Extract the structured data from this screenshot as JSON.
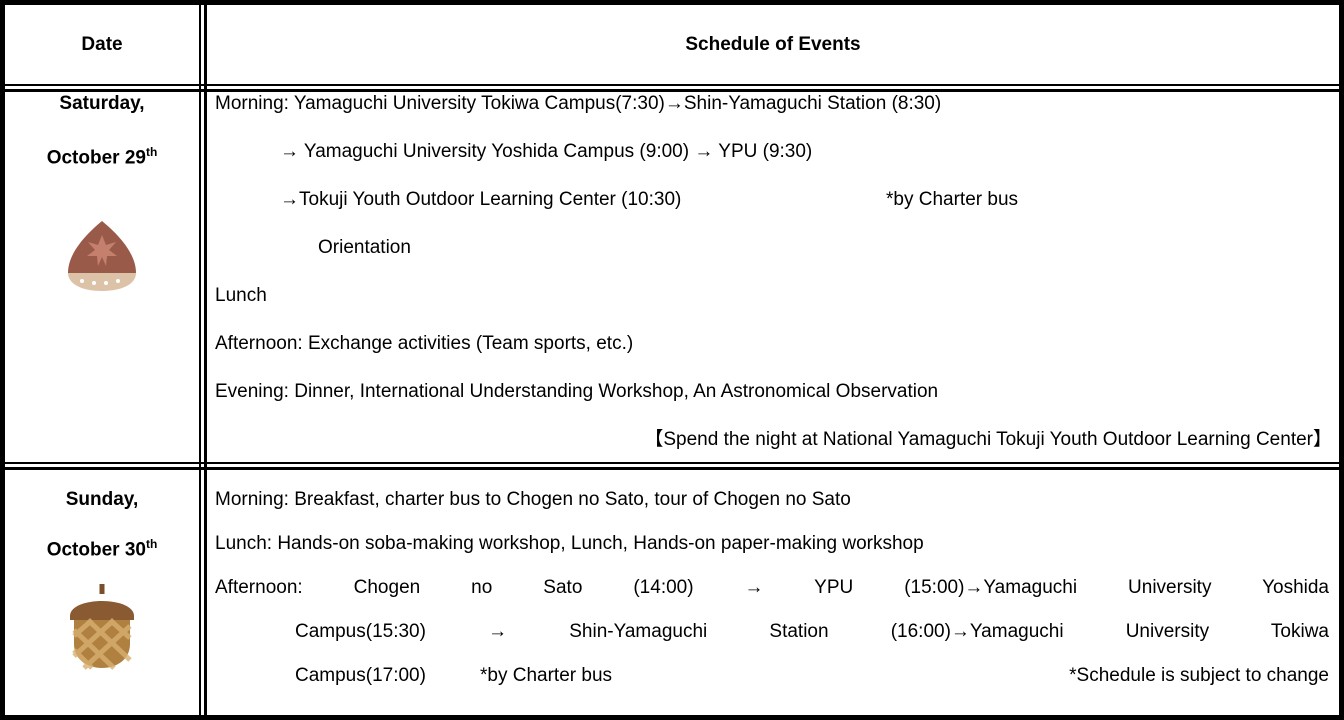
{
  "header": {
    "date": "Date",
    "events": "Schedule of Events"
  },
  "rows": [
    {
      "date_line1": "Saturday,",
      "date_line2": "October 29",
      "date_suffix": "th",
      "events": [
        "Morning: Yamaguchi University Tokiwa Campus(7:30)→Shin-Yamaguchi Station (8:30)",
        "→ Yamaguchi University Yoshida Campus (9:00) → YPU (9:30)",
        "→Tokuji Youth Outdoor Learning Center (10:30)",
        "*by Charter bus",
        "Orientation",
        "Lunch",
        "Afternoon: Exchange activities (Team sports, etc.)",
        "Evening: Dinner, International Understanding Workshop, An Astronomical Observation",
        "【Spend the night at National Yamaguchi Tokuji Youth Outdoor Learning Center】"
      ]
    },
    {
      "date_line1": "Sunday,",
      "date_line2": "October 30",
      "date_suffix": "th",
      "events": [
        "Morning: Breakfast, charter bus to Chogen no Sato, tour of Chogen no Sato",
        "Lunch: Hands-on soba-making workshop, Lunch, Hands-on paper-making workshop",
        "Afternoon: Chogen no Sato (14:00) → YPU (15:00)→Yamaguchi University Yoshida",
        "Campus(15:30) → Shin-Yamaguchi Station (16:00)→Yamaguchi University Tokiwa",
        "Campus(17:00)",
        "*by Charter bus",
        "*Schedule is subject to change"
      ]
    }
  ]
}
